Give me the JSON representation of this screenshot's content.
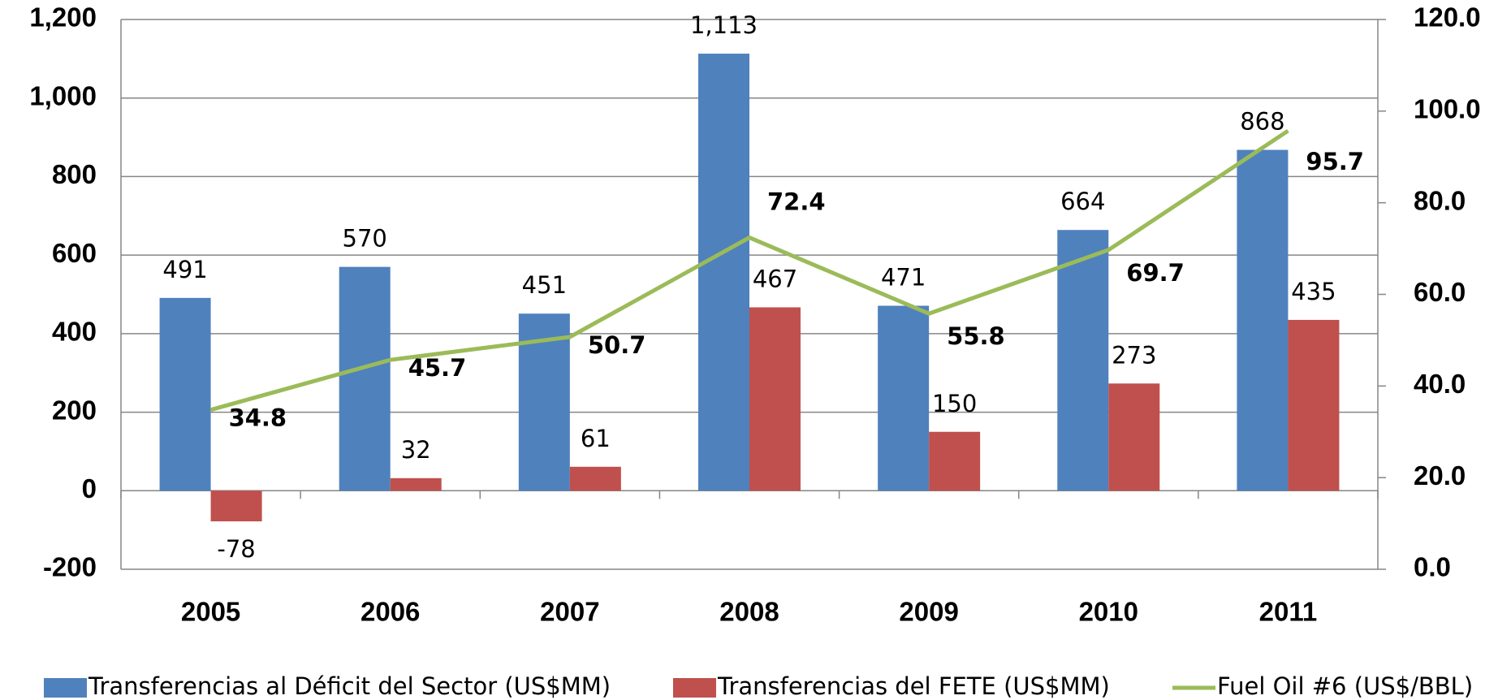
{
  "chart_data": {
    "type": "bar",
    "categories": [
      "2005",
      "2006",
      "2007",
      "2008",
      "2009",
      "2010",
      "2011"
    ],
    "series": [
      {
        "name": "Transferencias al Déficit del Sector (US$MM)",
        "color": "#4f81bd",
        "values": [
          491,
          570,
          451,
          1113,
          471,
          664,
          868
        ],
        "value_labels": [
          "491",
          "570",
          "451",
          "1,113",
          "471",
          "664",
          "868"
        ]
      },
      {
        "name": "Transferencias del FETE (US$MM)",
        "color": "#c0504d",
        "values": [
          -78,
          32,
          61,
          467,
          150,
          273,
          435
        ]
      },
      {
        "name": "Fuel Oil #6 (US$/BBL)",
        "color": "#9bbb59",
        "type": "line",
        "axis": "y2",
        "values": [
          34.8,
          45.7,
          50.7,
          72.4,
          55.8,
          69.7,
          95.7
        ]
      }
    ],
    "ylim": [
      -200,
      1200
    ],
    "yticks": [
      -200,
      0,
      200,
      400,
      600,
      800,
      {
        "value": 1000,
        "label": "1,000"
      },
      {
        "value": 1200,
        "label": "1,200"
      }
    ],
    "y2lim": [
      0,
      120
    ],
    "y2ticks": [
      {
        "value": 0,
        "label": "0.0"
      },
      {
        "value": 20,
        "label": "20.0"
      },
      {
        "value": 40,
        "label": "40.0"
      },
      {
        "value": 60,
        "label": "60.0"
      },
      {
        "value": 80,
        "label": "80.0"
      },
      {
        "value": 100,
        "label": "100.0"
      },
      {
        "value": 120,
        "label": "120.0"
      }
    ],
    "grid": true,
    "legend": "bottom"
  }
}
